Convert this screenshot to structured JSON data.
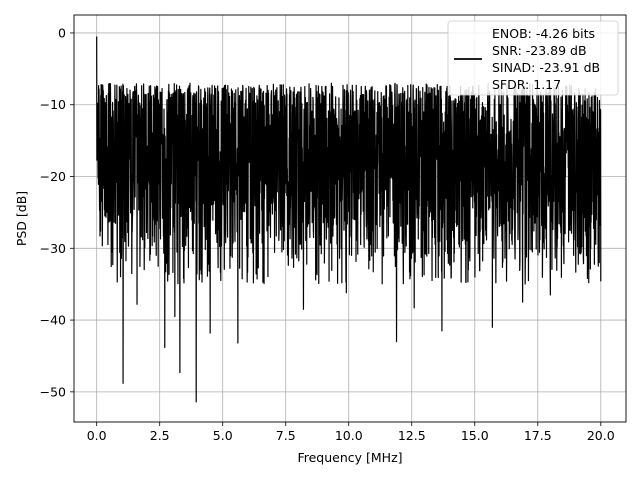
{
  "chart_data": {
    "type": "line",
    "title": "",
    "xlabel": "Frequency [MHz]",
    "ylabel": "PSD [dB]",
    "xlim": [
      -0.9,
      21.0
    ],
    "ylim": [
      -54.2,
      2.5
    ],
    "xticks": [
      0.0,
      2.5,
      5.0,
      7.5,
      10.0,
      12.5,
      15.0,
      17.5,
      20.0
    ],
    "xtick_labels": [
      "0.0",
      "2.5",
      "5.0",
      "7.5",
      "10.0",
      "12.5",
      "15.0",
      "17.5",
      "20.0"
    ],
    "yticks": [
      0,
      -10,
      -20,
      -30,
      -40,
      -50
    ],
    "ytick_labels": [
      "0",
      "−10",
      "−20",
      "−30",
      "−40",
      "−50"
    ],
    "grid": true,
    "legend_position": "top-right",
    "legend_lines": [
      "ENOB: -4.26 bits",
      "SNR: -23.89 dB",
      "SINAD: -23.91 dB",
      "SFDR: 1.17"
    ],
    "series": [
      {
        "color": "#000000",
        "x_range": [
          0.0,
          20.0
        ],
        "noise_floor_db": [
          -32,
          -7
        ],
        "peak_db": -0.5,
        "deep_dips": [
          {
            "x": 1.05,
            "y": -48.8
          },
          {
            "x": 1.6,
            "y": -37.8
          },
          {
            "x": 2.7,
            "y": -43.8
          },
          {
            "x": 3.1,
            "y": -39.5
          },
          {
            "x": 3.3,
            "y": -47.3
          },
          {
            "x": 3.95,
            "y": -51.4
          },
          {
            "x": 4.5,
            "y": -41.8
          },
          {
            "x": 5.6,
            "y": -43.2
          },
          {
            "x": 8.2,
            "y": -38.5
          },
          {
            "x": 9.9,
            "y": -36.2
          },
          {
            "x": 11.9,
            "y": -43.0
          },
          {
            "x": 12.6,
            "y": -38.3
          },
          {
            "x": 13.7,
            "y": -41.5
          },
          {
            "x": 15.7,
            "y": -41.0
          },
          {
            "x": 16.9,
            "y": -37.5
          },
          {
            "x": 18.0,
            "y": -36.5
          }
        ]
      }
    ]
  }
}
